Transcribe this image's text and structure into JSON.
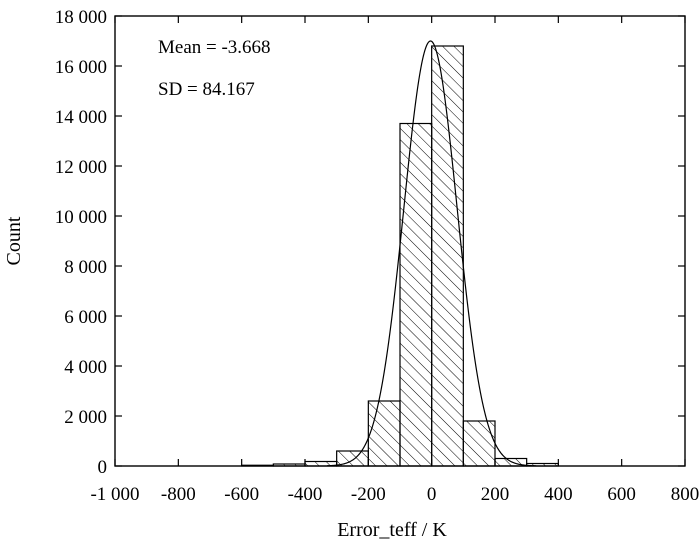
{
  "chart_data": {
    "type": "bar",
    "xlabel": "Error_teff / K",
    "ylabel": "Count",
    "xlim": [
      -1000,
      800
    ],
    "ylim": [
      0,
      18000
    ],
    "xticks": [
      -1000,
      -800,
      -600,
      -400,
      -200,
      0,
      200,
      400,
      600,
      800
    ],
    "xtick_labels": [
      "-1 000",
      "-800",
      "-600",
      "-400",
      "-200",
      "0",
      "200",
      "400",
      "600",
      "800"
    ],
    "yticks": [
      0,
      2000,
      4000,
      6000,
      8000,
      10000,
      12000,
      14000,
      16000,
      18000
    ],
    "ytick_labels": [
      "0",
      "2 000",
      "4 000",
      "6 000",
      "8 000",
      "10 000",
      "12 000",
      "14 000",
      "16 000",
      "18 000"
    ],
    "bin_edges": [
      -600,
      -500,
      -400,
      -300,
      -200,
      -100,
      0,
      100,
      200,
      300,
      400
    ],
    "values": [
      30,
      80,
      180,
      600,
      2600,
      13700,
      16800,
      1800,
      300,
      100
    ],
    "bar_fill": "hatch-diagonal",
    "fit_curve": {
      "type": "gaussian",
      "mean": -3.668,
      "sd": 84.167,
      "peak": 17000
    },
    "annotations": [
      "Mean = -3.668",
      "SD = 84.167"
    ],
    "grid": false,
    "legend": "none"
  }
}
